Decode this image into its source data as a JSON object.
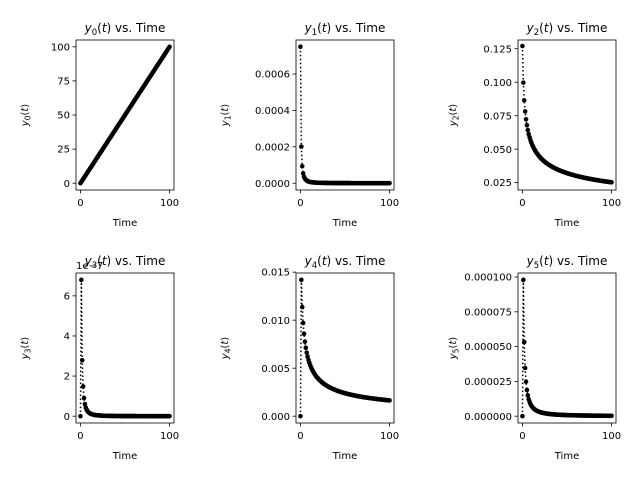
{
  "chart_data": [
    {
      "type": "scatter",
      "title": "y0(t) vs. Time",
      "title_var": "y",
      "title_sub": "0",
      "title_rest": "(t) vs. Time",
      "xlabel": "Time",
      "ylabel": "y0(t)",
      "ylabel_var": "y",
      "ylabel_sub": "0",
      "ylabel_rest": "(t)",
      "xlim": [
        -5,
        105
      ],
      "ylim": [
        -5,
        105
      ],
      "xticks": [
        0,
        100
      ],
      "xtick_labels": [
        "0",
        "100"
      ],
      "yticks": [
        0,
        25,
        50,
        75,
        100
      ],
      "ytick_labels": [
        "0",
        "25",
        "50",
        "75",
        "100"
      ],
      "offset_text": "",
      "series": [
        {
          "model": "linear",
          "y0": 0,
          "slope": 1
        }
      ]
    },
    {
      "type": "scatter",
      "title": "y1(t) vs. Time",
      "title_var": "y",
      "title_sub": "1",
      "title_rest": "(t) vs. Time",
      "xlabel": "Time",
      "ylabel": "y1(t)",
      "ylabel_var": "y",
      "ylabel_sub": "1",
      "ylabel_rest": "(t)",
      "xlim": [
        -5,
        105
      ],
      "ylim": [
        -3.75e-05,
        0.000787
      ],
      "xticks": [
        0,
        100
      ],
      "xtick_labels": [
        "0",
        "100"
      ],
      "yticks": [
        0,
        0.0002,
        0.0004,
        0.0006
      ],
      "ytick_labels": [
        "0.0000",
        "0.0002",
        "0.0004",
        "0.0006"
      ],
      "offset_text": "",
      "series": [
        {
          "model": "power",
          "y1": 0.00075,
          "exponent": 1.9
        }
      ]
    },
    {
      "type": "scatter",
      "title": "y2(t) vs. Time",
      "title_var": "y",
      "title_sub": "2",
      "title_rest": "(t) vs. Time",
      "xlabel": "Time",
      "ylabel": "y2(t)",
      "ylabel_var": "y",
      "ylabel_sub": "2",
      "ylabel_rest": "(t)",
      "xlim": [
        -5,
        105
      ],
      "ylim": [
        0.0195,
        0.1315
      ],
      "xticks": [
        0,
        100
      ],
      "xtick_labels": [
        "0",
        "100"
      ],
      "yticks": [
        0.025,
        0.05,
        0.075,
        0.1,
        0.125
      ],
      "ytick_labels": [
        "0.025",
        "0.050",
        "0.075",
        "0.100",
        "0.125"
      ],
      "offset_text": "",
      "series": [
        {
          "model": "power",
          "y1": 0.127,
          "exponent": 0.35
        }
      ]
    },
    {
      "type": "scatter",
      "title": "y3(t) vs. Time",
      "title_var": "y",
      "title_sub": "3",
      "title_rest": "(t) vs. Time",
      "xlabel": "Time",
      "ylabel": "y3(t)",
      "ylabel_var": "y",
      "ylabel_sub": "3",
      "ylabel_rest": "(t)",
      "xlim": [
        -5,
        105
      ],
      "ylim": [
        -0.34,
        7.14
      ],
      "xticks": [
        0,
        100
      ],
      "xtick_labels": [
        "0",
        "100"
      ],
      "yticks": [
        0,
        2,
        4,
        6
      ],
      "ytick_labels": [
        "0",
        "2",
        "4",
        "6"
      ],
      "offset_text": "1e−7",
      "series": [
        {
          "model": "power_from2",
          "y2": 6.8,
          "exponent": 2.2
        }
      ]
    },
    {
      "type": "scatter",
      "title": "y4(t) vs. Time",
      "title_var": "y",
      "title_sub": "4",
      "title_rest": "(t) vs. Time",
      "xlabel": "Time",
      "ylabel": "y4(t)",
      "ylabel_var": "y",
      "ylabel_sub": "4",
      "ylabel_rest": "(t)",
      "xlim": [
        -5,
        105
      ],
      "ylim": [
        -0.00071,
        0.01491
      ],
      "xticks": [
        0,
        100
      ],
      "xtick_labels": [
        "0",
        "100"
      ],
      "yticks": [
        0,
        0.005,
        0.01,
        0.015
      ],
      "ytick_labels": [
        "0.000",
        "0.005",
        "0.010",
        "0.015"
      ],
      "offset_text": "",
      "series": [
        {
          "model": "power_from2",
          "y2": 0.0142,
          "exponent": 0.55
        }
      ]
    },
    {
      "type": "scatter",
      "title": "y5(t) vs. Time",
      "title_var": "y",
      "title_sub": "5",
      "title_rest": "(t) vs. Time",
      "xlabel": "Time",
      "ylabel": "y5(t)",
      "ylabel_var": "y",
      "ylabel_sub": "5",
      "ylabel_rest": "(t)",
      "xlim": [
        -5,
        105
      ],
      "ylim": [
        -4.9e-06,
        0.0001029
      ],
      "xticks": [
        0,
        100
      ],
      "xtick_labels": [
        "0",
        "100"
      ],
      "yticks": [
        0,
        2.5e-05,
        5e-05,
        7.5e-05,
        0.0001
      ],
      "ytick_labels": [
        "0.000000",
        "0.000025",
        "0.000050",
        "0.000075",
        "0.000100"
      ],
      "offset_text": "",
      "series": [
        {
          "model": "power_from2",
          "y2": 9.8e-05,
          "exponent": 1.5
        }
      ]
    }
  ],
  "style": {
    "marker_color": "#000000",
    "line_style": "dotted",
    "axes_color": "#000000"
  }
}
